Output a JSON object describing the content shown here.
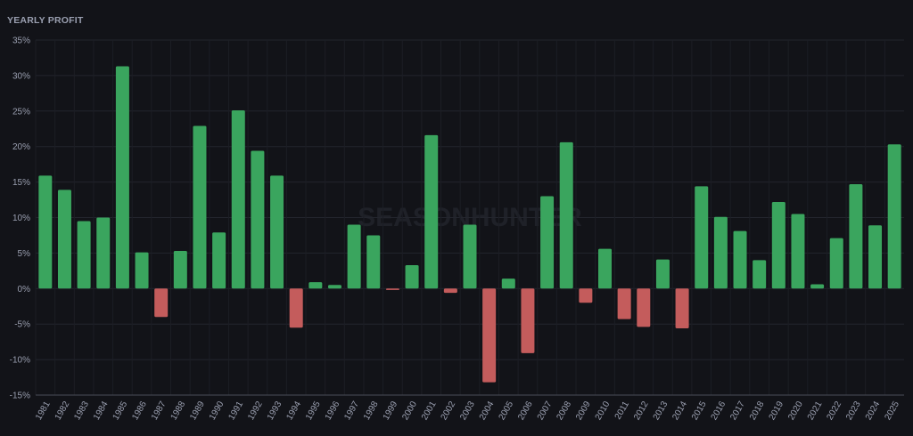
{
  "chart_data": {
    "type": "bar",
    "title": "YEARLY PROFIT",
    "watermark": "SEASONHUNTER",
    "categories": [
      "1981",
      "1982",
      "1983",
      "1984",
      "1985",
      "1986",
      "1987",
      "1988",
      "1989",
      "1990",
      "1991",
      "1992",
      "1993",
      "1994",
      "1995",
      "1996",
      "1997",
      "1998",
      "1999",
      "2000",
      "2001",
      "2002",
      "2003",
      "2004",
      "2005",
      "2006",
      "2007",
      "2008",
      "2009",
      "2010",
      "2011",
      "2012",
      "2013",
      "2014",
      "2015",
      "2016",
      "2017",
      "2018",
      "2019",
      "2020",
      "2021",
      "2022",
      "2023",
      "2024",
      "2025"
    ],
    "values": [
      15.9,
      13.9,
      9.5,
      10,
      31.3,
      5.1,
      -4,
      5.3,
      22.9,
      7.9,
      25.1,
      19.4,
      15.9,
      -5.5,
      0.9,
      0.5,
      9,
      7.5,
      -0.2,
      3.3,
      21.6,
      -0.6,
      9,
      -13.2,
      1.4,
      -9.1,
      13,
      20.6,
      -2,
      5.6,
      -4.3,
      -5.4,
      4.1,
      -5.6,
      14.4,
      10.1,
      8.1,
      4,
      12.2,
      10.5,
      0.6,
      7.1,
      14.7,
      8.9,
      20.3
    ],
    "color_positive": "#3aa55e",
    "color_negative": "#c45c5c",
    "ylim": [
      -15,
      35
    ],
    "yticks": [
      {
        "value": -15,
        "label": "-15%"
      },
      {
        "value": -10,
        "label": "-10%"
      },
      {
        "value": -5,
        "label": "-5%"
      },
      {
        "value": 0,
        "label": "0%"
      },
      {
        "value": 5,
        "label": "5%"
      },
      {
        "value": 10,
        "label": "10%"
      },
      {
        "value": 15,
        "label": "15%"
      },
      {
        "value": 20,
        "label": "20%"
      },
      {
        "value": 25,
        "label": "25%"
      },
      {
        "value": 30,
        "label": "30%"
      },
      {
        "value": 35,
        "label": "35%"
      }
    ],
    "grid": true
  }
}
